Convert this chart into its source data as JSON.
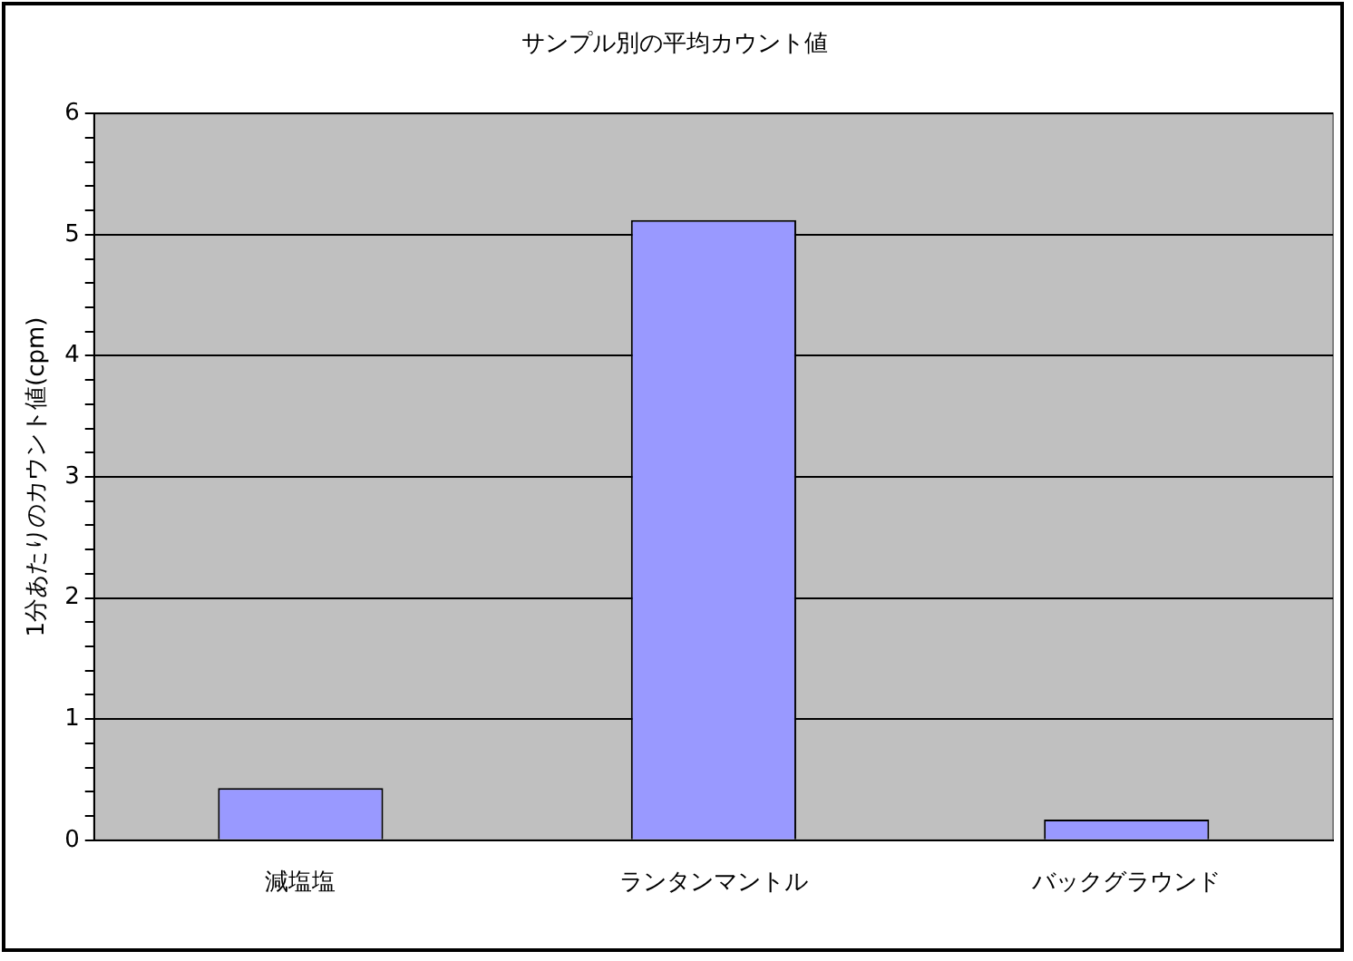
{
  "chart_data": {
    "type": "bar",
    "title": "サンプル別の平均カウント値",
    "ylabel": "1分あたりのカウント値(cpm)",
    "categories": [
      "減塩塩",
      "ランタンマントル",
      "バックグラウンド"
    ],
    "values": [
      0.43,
      5.12,
      0.17
    ],
    "color": "#9999ff",
    "ylim": [
      0,
      6
    ],
    "yticks": [
      0,
      {
        "value": 0.2,
        "label": null
      },
      {
        "value": 0.4,
        "label": null
      },
      {
        "value": 0.6,
        "label": null
      },
      {
        "value": 0.8,
        "label": null
      },
      1,
      {
        "value": 1.2,
        "label": null
      },
      {
        "value": 1.4,
        "label": null
      },
      {
        "value": 1.6,
        "label": null
      },
      {
        "value": 1.8,
        "label": null
      },
      2,
      {
        "value": 2.2,
        "label": null
      },
      {
        "value": 2.4,
        "label": null
      },
      {
        "value": 2.6,
        "label": null
      },
      {
        "value": 2.8,
        "label": null
      },
      3,
      {
        "value": 3.2,
        "label": null
      },
      {
        "value": 3.4,
        "label": null
      },
      {
        "value": 3.6,
        "label": null
      },
      {
        "value": 3.8,
        "label": null
      },
      4,
      {
        "value": 4.2,
        "label": null
      },
      {
        "value": 4.4,
        "label": null
      },
      {
        "value": 4.6,
        "label": null
      },
      {
        "value": 4.8,
        "label": null
      },
      5,
      {
        "value": 5.2,
        "label": null
      },
      {
        "value": 5.4,
        "label": null
      },
      {
        "value": 5.6,
        "label": null
      },
      {
        "value": 5.8,
        "label": null
      },
      6
    ],
    "grid": "y",
    "legend": false
  }
}
